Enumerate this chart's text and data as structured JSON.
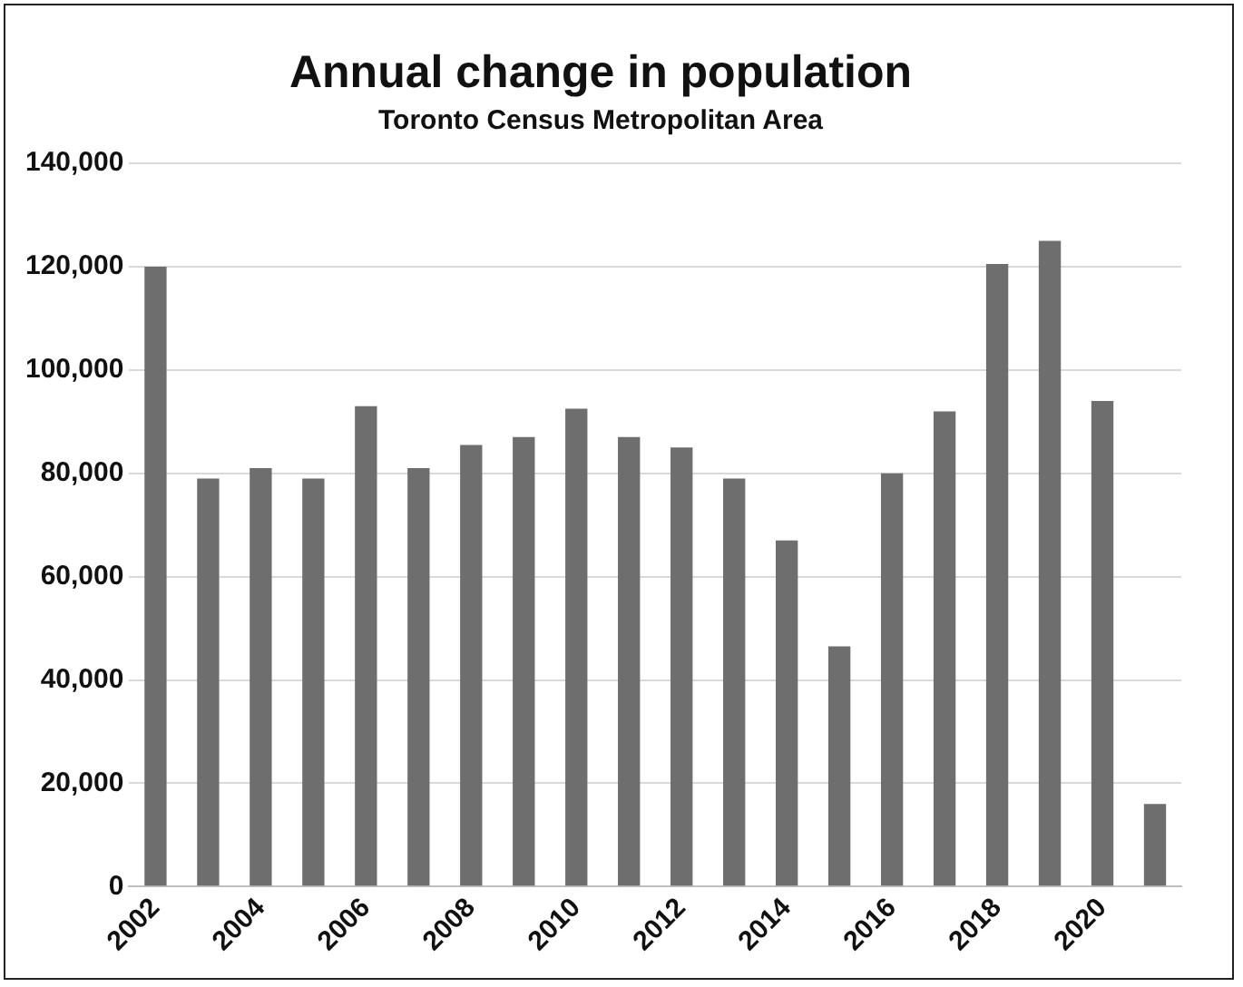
{
  "chart_data": {
    "type": "bar",
    "title": "Annual change in population",
    "subtitle": "Toronto Census Metropolitan Area",
    "categories": [
      "2002",
      null,
      "2004",
      null,
      "2006",
      null,
      "2008",
      null,
      "2010",
      null,
      "2012",
      null,
      "2014",
      null,
      "2016",
      null,
      "2018",
      null,
      "2020",
      null
    ],
    "values": [
      120000,
      79000,
      81000,
      79000,
      93000,
      81000,
      85500,
      87000,
      92500,
      87000,
      85000,
      79000,
      67000,
      46500,
      80000,
      92000,
      120500,
      125000,
      94000,
      16000
    ],
    "color": "#6e6e6e",
    "ylim": [
      0,
      140000
    ],
    "yticks": [
      {
        "value": 0,
        "label": "0"
      },
      {
        "value": 20000,
        "label": "20,000"
      },
      {
        "value": 40000,
        "label": "40,000"
      },
      {
        "value": 60000,
        "label": "60,000"
      },
      {
        "value": 80000,
        "label": "80,000"
      },
      {
        "value": 100000,
        "label": "100,000"
      },
      {
        "value": 120000,
        "label": "120,000"
      },
      {
        "value": 140000,
        "label": "140,000"
      }
    ],
    "grid": "y"
  }
}
